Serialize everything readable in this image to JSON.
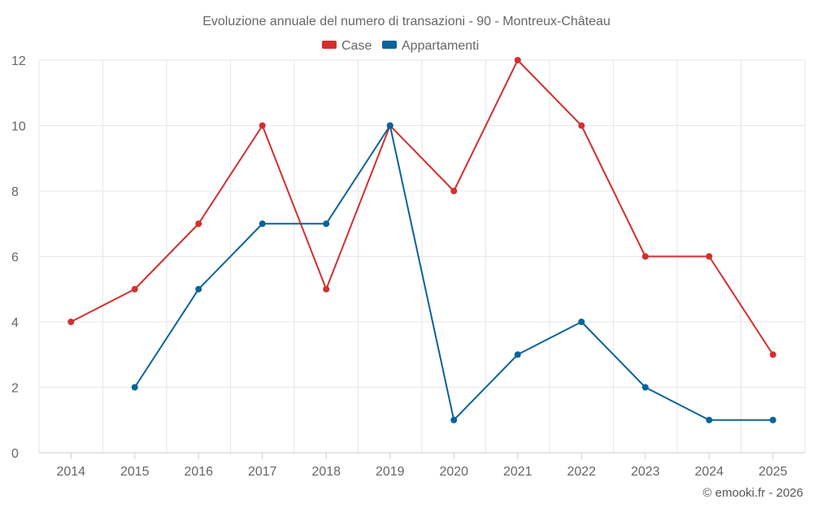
{
  "chart_data": {
    "type": "line",
    "title": "Evoluzione annuale del numero di transazioni - 90 - Montreux-Château",
    "categories": [
      "2014",
      "2015",
      "2016",
      "2017",
      "2018",
      "2019",
      "2020",
      "2021",
      "2022",
      "2023",
      "2024",
      "2025"
    ],
    "ylim": [
      0,
      12
    ],
    "yticks": [
      0,
      2,
      4,
      6,
      8,
      10,
      12
    ],
    "grid": true,
    "legend_position": "top-center",
    "xlabel": "",
    "ylabel": "",
    "series": [
      {
        "name": "Case",
        "color": "#d32f2f",
        "values": [
          4,
          5,
          7,
          10,
          5,
          10,
          8,
          12,
          10,
          6,
          6,
          3
        ]
      },
      {
        "name": "Appartamenti",
        "color": "#0a6399",
        "values": [
          null,
          2,
          5,
          7,
          7,
          10,
          1,
          3,
          4,
          2,
          1,
          1
        ]
      }
    ]
  },
  "credit": "© emooki.fr - 2026"
}
